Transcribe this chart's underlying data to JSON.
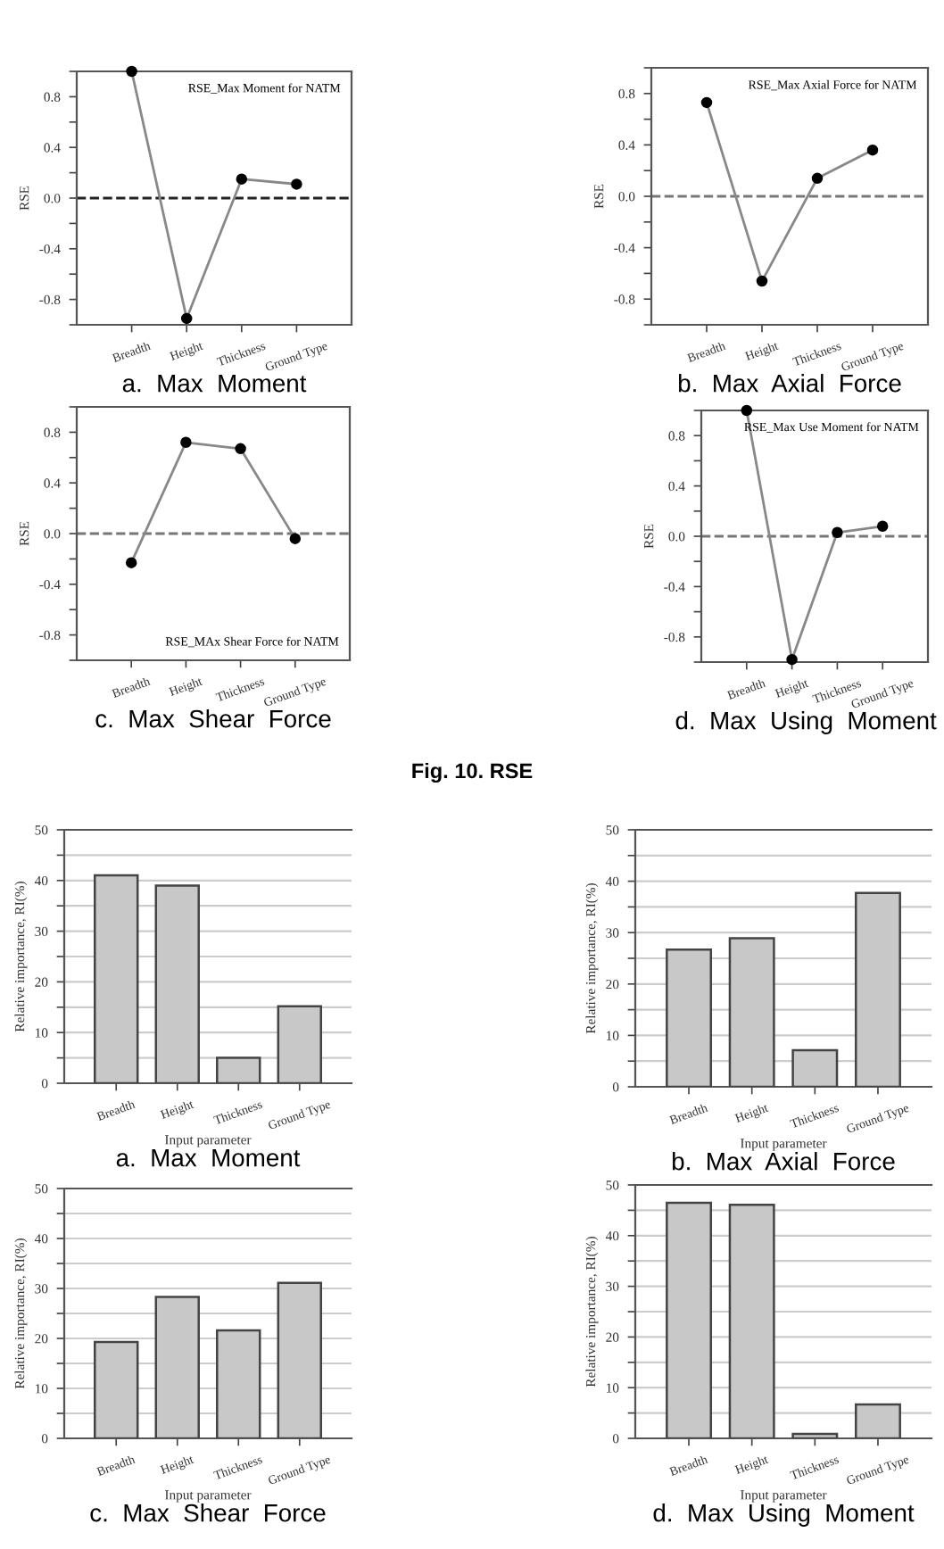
{
  "chart_data": [
    {
      "type": "line",
      "title": "a.  Max  Moment",
      "ylabel": "RSE",
      "categories": [
        "Breadth",
        "Height",
        "Thickness",
        "Ground Type"
      ],
      "series": [
        {
          "color": "#888888",
          "values": [
            1.0,
            -0.95,
            0.15,
            0.11
          ]
        }
      ],
      "ylim": [
        -1.0,
        1.0
      ],
      "yticks": [
        {
          "value": -1.0,
          "label": null
        },
        {
          "value": -0.8,
          "label": "-0.8"
        },
        {
          "value": -0.6,
          "label": null
        },
        {
          "value": -0.4,
          "label": "-0.4"
        },
        {
          "value": -0.2,
          "label": null
        },
        {
          "value": 0,
          "label": "0.0"
        },
        {
          "value": 0.2,
          "label": null
        },
        {
          "value": 0.4,
          "label": "0.4"
        },
        {
          "value": 0.6,
          "label": null
        },
        {
          "value": 0.8,
          "label": "0.8"
        },
        {
          "value": 1.0,
          "label": null
        }
      ],
      "marker": "circle",
      "line_style": "solid",
      "ref_lines": [
        {
          "axis": "y",
          "value": 0,
          "color": "#222222",
          "line_style": "dashed"
        }
      ],
      "annotations": [
        "RSE_Max Moment for NATM"
      ]
    },
    {
      "type": "line",
      "title": "b.  Max  Axial  Force",
      "ylabel": "RSE",
      "categories": [
        "Breadth",
        "Height",
        "Thickness",
        "Ground Type"
      ],
      "series": [
        {
          "color": "#888888",
          "values": [
            0.73,
            -0.66,
            0.14,
            0.36
          ]
        }
      ],
      "ylim": [
        -1.0,
        1.0
      ],
      "yticks": [
        {
          "value": -1.0,
          "label": null
        },
        {
          "value": -0.8,
          "label": "-0.8"
        },
        {
          "value": -0.6,
          "label": null
        },
        {
          "value": -0.4,
          "label": "-0.4"
        },
        {
          "value": -0.2,
          "label": null
        },
        {
          "value": 0,
          "label": "0.0"
        },
        {
          "value": 0.2,
          "label": null
        },
        {
          "value": 0.4,
          "label": "0.4"
        },
        {
          "value": 0.6,
          "label": null
        },
        {
          "value": 0.8,
          "label": "0.8"
        },
        {
          "value": 1.0,
          "label": null
        }
      ],
      "marker": "circle",
      "line_style": "solid",
      "ref_lines": [
        {
          "axis": "y",
          "value": 0,
          "color": "#777777",
          "line_style": "dashed"
        }
      ],
      "annotations": [
        "RSE_Max Axial Force for NATM"
      ]
    },
    {
      "type": "line",
      "title": "c.  Max  Shear  Force",
      "ylabel": "RSE",
      "categories": [
        "Breadth",
        "Height",
        "Thickness",
        "Ground Type"
      ],
      "series": [
        {
          "color": "#888888",
          "values": [
            -0.23,
            0.72,
            0.67,
            -0.04
          ]
        }
      ],
      "ylim": [
        -1.0,
        1.0
      ],
      "yticks": [
        {
          "value": -1.0,
          "label": null
        },
        {
          "value": -0.8,
          "label": "-0.8"
        },
        {
          "value": -0.6,
          "label": null
        },
        {
          "value": -0.4,
          "label": "-0.4"
        },
        {
          "value": -0.2,
          "label": null
        },
        {
          "value": 0,
          "label": "0.0"
        },
        {
          "value": 0.2,
          "label": null
        },
        {
          "value": 0.4,
          "label": "0.4"
        },
        {
          "value": 0.6,
          "label": null
        },
        {
          "value": 0.8,
          "label": "0.8"
        },
        {
          "value": 1.0,
          "label": null
        }
      ],
      "marker": "circle",
      "line_style": "solid",
      "ref_lines": [
        {
          "axis": "y",
          "value": 0,
          "color": "#777777",
          "line_style": "dashed"
        }
      ],
      "annotations": [
        "RSE_MAx Shear Force for NATM",
        "Fig. 10. RSE"
      ]
    },
    {
      "type": "line",
      "title": "d.  Max  Using  Moment",
      "ylabel": "RSE",
      "categories": [
        "Breadth",
        "Height",
        "Thickness",
        "Ground Type"
      ],
      "series": [
        {
          "color": "#888888",
          "values": [
            1.0,
            -0.98,
            0.03,
            0.08
          ]
        }
      ],
      "ylim": [
        -1.0,
        1.0
      ],
      "yticks": [
        {
          "value": -1.0,
          "label": null
        },
        {
          "value": -0.8,
          "label": "-0.8"
        },
        {
          "value": -0.6,
          "label": null
        },
        {
          "value": -0.4,
          "label": "-0.4"
        },
        {
          "value": -0.2,
          "label": null
        },
        {
          "value": 0,
          "label": "0.0"
        },
        {
          "value": 0.2,
          "label": null
        },
        {
          "value": 0.4,
          "label": "0.4"
        },
        {
          "value": 0.6,
          "label": null
        },
        {
          "value": 0.8,
          "label": "0.8"
        },
        {
          "value": 1.0,
          "label": null
        }
      ],
      "marker": "circle",
      "line_style": "solid",
      "ref_lines": [
        {
          "axis": "y",
          "value": 0,
          "color": "#777777",
          "line_style": "dashed"
        }
      ],
      "annotations": [
        "RSE_Max Use Moment for NATM"
      ]
    },
    {
      "type": "bar",
      "title": "a.  Max  Moment",
      "xlabel": "Input parameter",
      "ylabel": "Relative importance, RI(%)",
      "categories": [
        "Breadth",
        "Height",
        "Thickness",
        "Ground Type"
      ],
      "series": [
        {
          "color": "#c8c8c8",
          "values": [
            41,
            39,
            5,
            15.2
          ]
        }
      ],
      "ylim": [
        0,
        50
      ],
      "yticks": [
        0,
        {
          "value": 5,
          "label": null
        },
        10,
        {
          "value": 15,
          "label": null
        },
        20,
        {
          "value": 25,
          "label": null
        },
        30,
        {
          "value": 35,
          "label": null
        },
        40,
        {
          "value": 45,
          "label": null
        },
        50
      ],
      "grid": "y"
    },
    {
      "type": "bar",
      "title": "b.  Max  Axial  Force",
      "xlabel": "Input parameter",
      "ylabel": "Relative importance, RI(%)",
      "categories": [
        "Breadth",
        "Height",
        "Thickness",
        "Ground Type"
      ],
      "series": [
        {
          "color": "#c8c8c8",
          "values": [
            26.7,
            28.9,
            7.1,
            37.7
          ]
        }
      ],
      "ylim": [
        0,
        50
      ],
      "yticks": [
        0,
        {
          "value": 5,
          "label": null
        },
        10,
        {
          "value": 15,
          "label": null
        },
        20,
        {
          "value": 25,
          "label": null
        },
        30,
        {
          "value": 35,
          "label": null
        },
        40,
        {
          "value": 45,
          "label": null
        },
        50
      ],
      "grid": "y"
    },
    {
      "type": "bar",
      "title": "c.  Max  Shear  Force",
      "xlabel": "Input parameter",
      "ylabel": "Relative importance, RI(%)",
      "categories": [
        "Breadth",
        "Height",
        "Thickness",
        "Ground Type"
      ],
      "series": [
        {
          "color": "#c8c8c8",
          "values": [
            19.3,
            28.3,
            21.6,
            31.1
          ]
        }
      ],
      "ylim": [
        0,
        50
      ],
      "yticks": [
        0,
        {
          "value": 5,
          "label": null
        },
        10,
        {
          "value": 15,
          "label": null
        },
        20,
        {
          "value": 25,
          "label": null
        },
        30,
        {
          "value": 35,
          "label": null
        },
        40,
        {
          "value": 45,
          "label": null
        },
        50
      ],
      "grid": "y"
    },
    {
      "type": "bar",
      "title": "d.  Max  Using  Moment",
      "xlabel": "Input parameter",
      "ylabel": "Relative importance, RI(%)",
      "categories": [
        "Breadth",
        "Height",
        "Thickness",
        "Ground Type"
      ],
      "series": [
        {
          "color": "#c8c8c8",
          "values": [
            46.5,
            46.1,
            0.9,
            6.7
          ]
        }
      ],
      "ylim": [
        0,
        50
      ],
      "yticks": [
        0,
        {
          "value": 5,
          "label": null
        },
        10,
        {
          "value": 15,
          "label": null
        },
        20,
        {
          "value": 25,
          "label": null
        },
        30,
        {
          "value": 35,
          "label": null
        },
        40,
        {
          "value": 45,
          "label": null
        },
        50
      ],
      "grid": "y"
    }
  ]
}
